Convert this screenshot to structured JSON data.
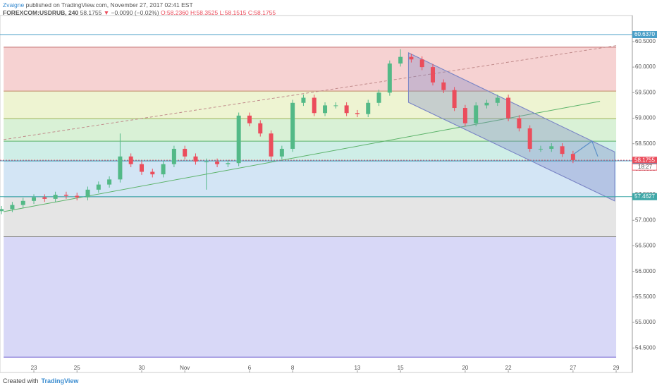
{
  "header": {
    "author": "Zvaigne",
    "published": "published on TradingView.com, November 27, 2017 02:41 EST",
    "symbol": "FOREXCOM:USDRUB, 240",
    "last": "58.1755",
    "arrow": "▼",
    "change": "−0.0090 (−0.02%)",
    "open": "O:58.2360",
    "high": "H:58.3525",
    "low": "L:58.1515",
    "close": "C:58.1755"
  },
  "footer": {
    "created": "Created with",
    "brand": "TradingView"
  },
  "chart_data": {
    "type": "candlestick",
    "up_color": "#53b987",
    "down_color": "#eb4d5c",
    "grid": false,
    "x": [
      -1.5,
      -1,
      -0.5,
      0,
      0.5,
      1,
      1.5,
      2,
      2.5,
      3,
      3.5,
      4,
      4.5,
      5,
      5.5,
      6,
      6.5,
      7,
      7.5,
      8,
      8.5,
      9,
      9.5,
      10,
      10.5,
      11,
      11.5,
      12,
      12.5,
      13,
      13.5,
      14,
      14.5,
      15,
      15.5,
      16,
      16.5,
      17,
      17.5,
      18,
      18.5,
      19,
      19.5,
      20,
      20.5,
      21,
      21.5,
      22,
      22.5,
      23,
      23.5,
      24,
      24.5,
      25
    ],
    "open": [
      57.18,
      57.22,
      57.3,
      57.38,
      57.45,
      57.42,
      57.5,
      57.48,
      57.45,
      57.6,
      57.7,
      57.8,
      58.25,
      58.1,
      57.95,
      57.9,
      58.1,
      58.4,
      58.25,
      58.15,
      58.15,
      58.1,
      58.12,
      59.05,
      58.9,
      58.7,
      58.25,
      58.4,
      59.3,
      59.4,
      59.1,
      59.25,
      59.25,
      59.1,
      59.08,
      59.3,
      59.5,
      60.07,
      60.2,
      60.15,
      60.0,
      59.7,
      59.55,
      59.2,
      58.9,
      59.25,
      59.3,
      59.4,
      59.0,
      58.8,
      58.4,
      58.4,
      58.45,
      58.3
    ],
    "high": [
      57.28,
      57.36,
      57.44,
      57.51,
      57.51,
      57.56,
      57.56,
      57.54,
      57.66,
      57.76,
      57.86,
      58.7,
      58.31,
      58.16,
      58.01,
      58.16,
      58.46,
      58.46,
      58.31,
      58.21,
      58.21,
      58.18,
      59.11,
      59.11,
      58.96,
      58.76,
      58.46,
      59.36,
      59.46,
      59.46,
      59.31,
      59.31,
      59.31,
      59.16,
      59.36,
      59.56,
      60.13,
      60.35,
      60.26,
      60.21,
      60.06,
      59.76,
      59.61,
      59.26,
      59.31,
      59.36,
      59.46,
      59.46,
      59.06,
      58.86,
      58.46,
      58.51,
      58.51,
      58.36
    ],
    "low": [
      57.12,
      57.16,
      57.24,
      57.32,
      57.36,
      57.36,
      57.42,
      57.39,
      57.39,
      57.54,
      57.64,
      57.74,
      58.04,
      57.89,
      57.84,
      57.84,
      58.04,
      58.19,
      58.09,
      57.6,
      58.04,
      58.04,
      58.06,
      58.84,
      58.64,
      58.19,
      58.19,
      58.34,
      59.24,
      59.04,
      59.04,
      59.19,
      59.04,
      59.02,
      59.02,
      59.24,
      59.44,
      60.01,
      60.09,
      59.94,
      59.64,
      59.49,
      59.14,
      58.84,
      58.84,
      59.19,
      59.24,
      58.94,
      58.74,
      58.34,
      58.34,
      58.34,
      58.24,
      58.12
    ],
    "close": [
      57.22,
      57.3,
      57.38,
      57.45,
      57.42,
      57.5,
      57.48,
      57.45,
      57.6,
      57.7,
      57.8,
      58.25,
      58.1,
      57.95,
      57.9,
      58.1,
      58.4,
      58.25,
      58.15,
      58.15,
      58.1,
      58.12,
      59.05,
      58.9,
      58.7,
      58.25,
      58.4,
      59.3,
      59.4,
      59.1,
      59.25,
      59.25,
      59.1,
      59.08,
      59.3,
      59.5,
      60.07,
      60.2,
      60.15,
      60.0,
      59.7,
      59.55,
      59.2,
      58.9,
      59.25,
      59.3,
      59.4,
      59.0,
      58.8,
      58.4,
      58.4,
      58.45,
      58.3,
      58.18
    ],
    "xlim": [
      -1.57,
      27.75
    ],
    "ylim": [
      54.02,
      61.01
    ],
    "xticks": [
      {
        "value": 0,
        "label": "23"
      },
      {
        "value": 2,
        "label": "25"
      },
      {
        "value": 5,
        "label": "30"
      },
      {
        "value": 7,
        "label": "Nov"
      },
      {
        "value": 10,
        "label": "6"
      },
      {
        "value": 12,
        "label": "8"
      },
      {
        "value": 15,
        "label": "13"
      },
      {
        "value": 17,
        "label": "15"
      },
      {
        "value": 20,
        "label": "20"
      },
      {
        "value": 22,
        "label": "22"
      },
      {
        "value": 25,
        "label": "27"
      },
      {
        "value": 27,
        "label": "29"
      }
    ],
    "yticks": [
      {
        "value": 54.5,
        "label": "54.5000"
      },
      {
        "value": 55,
        "label": "55.0000"
      },
      {
        "value": 55.5,
        "label": "55.5000"
      },
      {
        "value": 56,
        "label": "56.0000"
      },
      {
        "value": 56.5,
        "label": "56.5000"
      },
      {
        "value": 57,
        "label": "57.0000"
      },
      {
        "value": 57.5,
        "label": "57.5000"
      },
      {
        "value": 58,
        "label": "58.0000"
      },
      {
        "value": 58.5,
        "label": "58.5000"
      },
      {
        "value": 59,
        "label": "59.0000"
      },
      {
        "value": 59.5,
        "label": "59.5000"
      },
      {
        "value": 60,
        "label": "60.0000"
      },
      {
        "value": 60.5,
        "label": "60.5000"
      }
    ],
    "fib_x": [
      -1.4,
      27
    ],
    "fib_levels": [
      60.39,
      59.53,
      58.99,
      58.55,
      58.16,
      57.46,
      56.68,
      54.32
    ],
    "fib_line_colors": [
      "#c06a6a",
      "#c08a6a",
      "#9bb35c",
      "#5cb36a",
      "#4fb3a0",
      "#5a8fc0",
      "#8a8a8a",
      "#6a5acd"
    ],
    "fib_band_colors": [
      "#f6d2d2",
      "#eef4d2",
      "#d9f1d6",
      "#cfeee7",
      "#d3e5f5",
      "#e5e5e5",
      "#d8d8f7"
    ],
    "price_lines": [
      {
        "value": 60.637,
        "label": "60.6370",
        "color": "#4a9fc7"
      },
      {
        "value": 58.1755,
        "label": "58.1755",
        "color": "#eb4d5c"
      },
      {
        "value": 58.1649,
        "label": "58.1649",
        "color": "#4a9fc7"
      },
      {
        "value": 57.4627,
        "label": "57.4627",
        "color": "#3fa7a7"
      }
    ],
    "countdown": "18:27",
    "trendlines": [
      {
        "x": [
          -1.4,
          26.25
        ],
        "y": [
          57.17,
          59.33
        ],
        "color": "#5cb36a",
        "dash": false
      },
      {
        "x": [
          -1.4,
          27
        ],
        "y": [
          58.58,
          60.42
        ],
        "color": "#c08a8a",
        "dash": true
      }
    ],
    "channel": {
      "x": [
        17.37,
        26.93
      ],
      "top": [
        60.28,
        58.34
      ],
      "bottom": [
        59.31,
        57.38
      ],
      "color": "#7b86c6"
    },
    "arrow": {
      "x": [
        25.05,
        25.88,
        26.15
      ],
      "y": [
        58.3,
        58.55,
        58.25
      ],
      "color": "#5b8fc7"
    }
  }
}
